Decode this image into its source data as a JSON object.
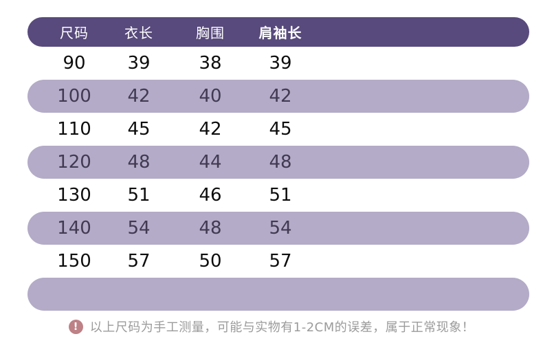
{
  "chart_data": {
    "type": "table",
    "title": "",
    "columns": [
      "尺码",
      "衣长",
      "胸围",
      "肩袖长"
    ],
    "rows": [
      {
        "size": "90",
        "length": "39",
        "chest": "38",
        "sleeve": "39"
      },
      {
        "size": "100",
        "length": "42",
        "chest": "40",
        "sleeve": "42"
      },
      {
        "size": "110",
        "length": "45",
        "chest": "42",
        "sleeve": "45"
      },
      {
        "size": "120",
        "length": "48",
        "chest": "44",
        "sleeve": "48"
      },
      {
        "size": "130",
        "length": "51",
        "chest": "46",
        "sleeve": "51"
      },
      {
        "size": "140",
        "length": "54",
        "chest": "48",
        "sleeve": "54"
      },
      {
        "size": "150",
        "length": "57",
        "chest": "50",
        "sleeve": "57"
      }
    ],
    "note": "以上尺码为手工测量，可能与实物有1-2CM的误差，属于正常现象！"
  },
  "footer": {
    "icon_glyph": "!",
    "note": "以上尺码为手工测量，可能与实物有1-2CM的误差，属于正常现象！"
  },
  "colors": {
    "header_bg": "#584a7c",
    "header_text": "#ffffff",
    "stripe_bg": "#b3abc7",
    "stripe_text": "#413a52",
    "row_text": "#0d0d0d",
    "note_text": "#9b9b9b",
    "note_icon_bg": "#bd8186"
  }
}
